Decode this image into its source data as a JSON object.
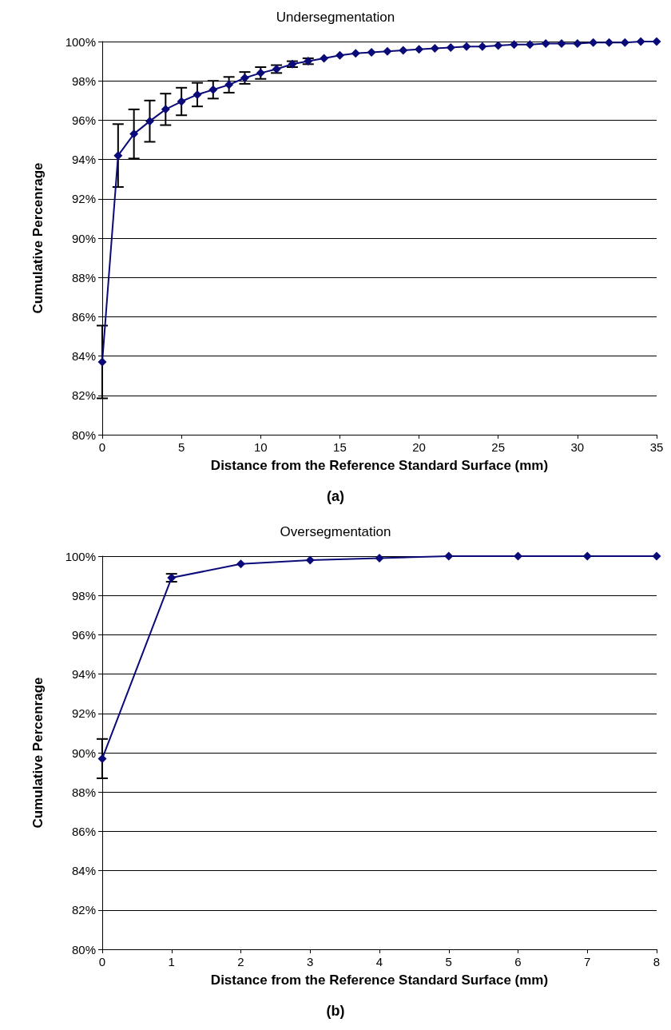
{
  "chart_data": [
    {
      "type": "line",
      "title": "Undersegmentation",
      "xlabel": "Distance from the Reference Standard Surface (mm)",
      "ylabel": "Cumulative Percenrage",
      "annotations": [
        "(a)"
      ],
      "x": [
        0,
        1,
        2,
        3,
        4,
        5,
        6,
        7,
        8,
        9,
        10,
        11,
        12,
        13,
        14,
        15,
        16,
        17,
        18,
        19,
        20,
        21,
        22,
        23,
        24,
        25,
        26,
        27,
        28,
        29,
        30,
        31,
        32,
        33,
        34,
        35
      ],
      "series": [
        {
          "color": "#0a0a78",
          "values": [
            83.7,
            94.2,
            95.3,
            95.95,
            96.55,
            96.95,
            97.3,
            97.55,
            97.8,
            98.15,
            98.4,
            98.6,
            98.85,
            99.0,
            99.15,
            99.3,
            99.4,
            99.45,
            99.5,
            99.55,
            99.6,
            99.65,
            99.7,
            99.75,
            99.75,
            99.8,
            99.85,
            99.85,
            99.9,
            99.9,
            99.9,
            99.95,
            99.95,
            99.95,
            100,
            100
          ],
          "errors": [
            1.85,
            1.6,
            1.25,
            1.05,
            0.8,
            0.7,
            0.6,
            0.45,
            0.4,
            0.3,
            0.3,
            0.2,
            0.15,
            0.15,
            null,
            null,
            null,
            null,
            null,
            null,
            null,
            null,
            null,
            null,
            null,
            null,
            null,
            null,
            null,
            null,
            null,
            null,
            null,
            null,
            null,
            null
          ]
        }
      ],
      "xlim": [
        0,
        35
      ],
      "xticks": [
        0,
        5,
        10,
        15,
        20,
        25,
        30,
        35
      ],
      "ylim": [
        80,
        100
      ],
      "yticks": [
        {
          "value": 80,
          "label": "80%"
        },
        {
          "value": 82,
          "label": "82%"
        },
        {
          "value": 84,
          "label": "84%"
        },
        {
          "value": 86,
          "label": "86%"
        },
        {
          "value": 88,
          "label": "88%"
        },
        {
          "value": 90,
          "label": "90%"
        },
        {
          "value": 92,
          "label": "92%"
        },
        {
          "value": 94,
          "label": "94%"
        },
        {
          "value": 96,
          "label": "96%"
        },
        {
          "value": 98,
          "label": "98%"
        },
        {
          "value": 100,
          "label": "100%"
        }
      ],
      "grid": "y",
      "marker": "diamond",
      "line_style": "solid"
    },
    {
      "type": "line",
      "title": "Oversegmentation",
      "xlabel": "Distance from the Reference Standard Surface (mm)",
      "ylabel": "Cumulative Percenrage",
      "annotations": [
        "(b)"
      ],
      "x": [
        0,
        1,
        2,
        3,
        4,
        5,
        6,
        7,
        8
      ],
      "series": [
        {
          "color": "#0a0a78",
          "values": [
            89.7,
            98.9,
            99.6,
            99.8,
            99.9,
            100,
            100,
            100,
            100
          ],
          "errors": [
            1.0,
            0.2,
            null,
            null,
            null,
            null,
            null,
            null,
            null
          ]
        }
      ],
      "xlim": [
        0,
        8
      ],
      "xticks": [
        0,
        1,
        2,
        3,
        4,
        5,
        6,
        7,
        8
      ],
      "ylim": [
        80,
        100
      ],
      "yticks": [
        {
          "value": 80,
          "label": "80%"
        },
        {
          "value": 82,
          "label": "82%"
        },
        {
          "value": 84,
          "label": "84%"
        },
        {
          "value": 86,
          "label": "86%"
        },
        {
          "value": 88,
          "label": "88%"
        },
        {
          "value": 90,
          "label": "90%"
        },
        {
          "value": 92,
          "label": "92%"
        },
        {
          "value": 94,
          "label": "94%"
        },
        {
          "value": 96,
          "label": "96%"
        },
        {
          "value": 98,
          "label": "98%"
        },
        {
          "value": 100,
          "label": "100%"
        }
      ],
      "grid": "y",
      "marker": "diamond",
      "line_style": "solid"
    }
  ]
}
